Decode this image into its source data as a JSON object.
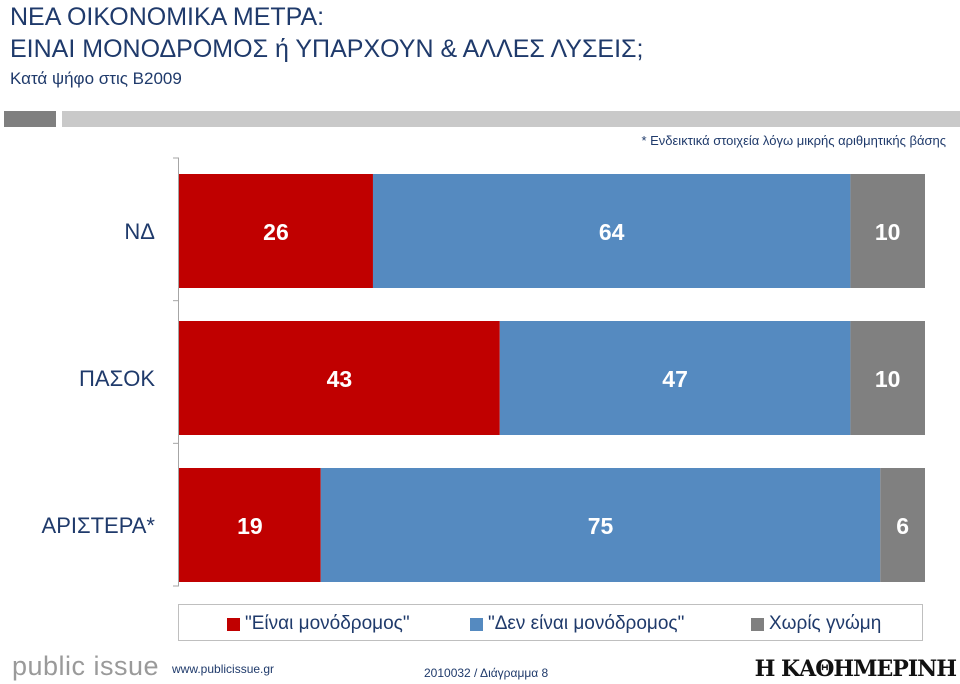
{
  "header": {
    "title_line1": "ΝΕΑ ΟΙΚΟΝΟΜΙΚΑ ΜΕΤΡΑ:",
    "title_line2": "ΕΙΝΑΙ ΜΟΝΟΔΡΟΜΟΣ ή ΥΠΑΡΧΟΥΝ & ΑΛΛΕΣ ΛΥΣΕΙΣ;",
    "subtitle": "Κατά ψήφο στις Β2009"
  },
  "note": "* Ενδεικτικά στοιχεία λόγω μικρής αριθμητικής βάσης",
  "chart_data": {
    "type": "bar",
    "orientation": "horizontal",
    "stacked": true,
    "categories": [
      "ΝΔ",
      "ΠΑΣΟΚ",
      "ΑΡΙΣΤΕΡΑ*"
    ],
    "series": [
      {
        "name": "\"Είναι μονόδρομος\"",
        "values": [
          26,
          43,
          19
        ],
        "color": "#c00000"
      },
      {
        "name": "\"Δεν είναι μονόδρομος\"",
        "values": [
          64,
          47,
          75
        ],
        "color": "#558ac0"
      },
      {
        "name": "Χωρίς γνώμη",
        "values": [
          10,
          10,
          6
        ],
        "color": "#808080"
      }
    ],
    "xlim": [
      0,
      100
    ],
    "grid": false,
    "legend_position": "bottom",
    "label_colors": {
      "red": "#ffffff",
      "blue": "#ffffff",
      "gray": "#ffffff"
    }
  },
  "footer": {
    "logo": "public issue",
    "url": "www.publicissue.gr",
    "code": "2010032 / Διάγραμμα 8",
    "brand": "Η ΚΑΘΗΜΕΡΙΝΗ"
  },
  "colors": {
    "text": "#1f3a6b",
    "divider_dark": "#7f7f7f",
    "divider_light": "#c9c9c9"
  }
}
